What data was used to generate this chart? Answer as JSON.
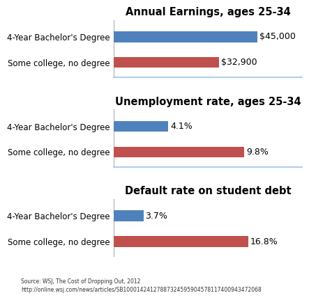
{
  "charts": [
    {
      "title": "Annual Earnings, ages 25-34",
      "categories": [
        "4-Year Bachelor's Degree",
        "Some college, no degree"
      ],
      "values": [
        45000,
        32900
      ],
      "labels": [
        "$45,000",
        "$32,900"
      ],
      "max_val": 50000,
      "colors": [
        "#4f81bd",
        "#c0504d"
      ]
    },
    {
      "title": "Unemployment rate, ages 25-34",
      "categories": [
        "4-Year Bachelor's Degree",
        "Some college, no degree"
      ],
      "values": [
        4.1,
        9.8
      ],
      "labels": [
        "4.1%",
        "9.8%"
      ],
      "max_val": 12,
      "colors": [
        "#4f81bd",
        "#c0504d"
      ]
    },
    {
      "title": "Default rate on student debt",
      "categories": [
        "4-Year Bachelor's Degree",
        "Some college, no degree"
      ],
      "values": [
        3.7,
        16.8
      ],
      "labels": [
        "3.7%",
        "16.8%"
      ],
      "max_val": 20,
      "colors": [
        "#4f81bd",
        "#c0504d"
      ]
    }
  ],
  "source_line1": "Source: WSJ, The Cost of Dropping Out, 2012",
  "source_line2": "http://online.wsj.com/news/articles/SB10001424127887324595904578117400943472068",
  "background_color": "#ffffff",
  "bar_height": 0.42,
  "title_fontsize": 10.5,
  "label_fontsize": 9,
  "tick_fontsize": 8.5,
  "source_fontsize": 5.5,
  "separator_color": "#9dc3e6"
}
